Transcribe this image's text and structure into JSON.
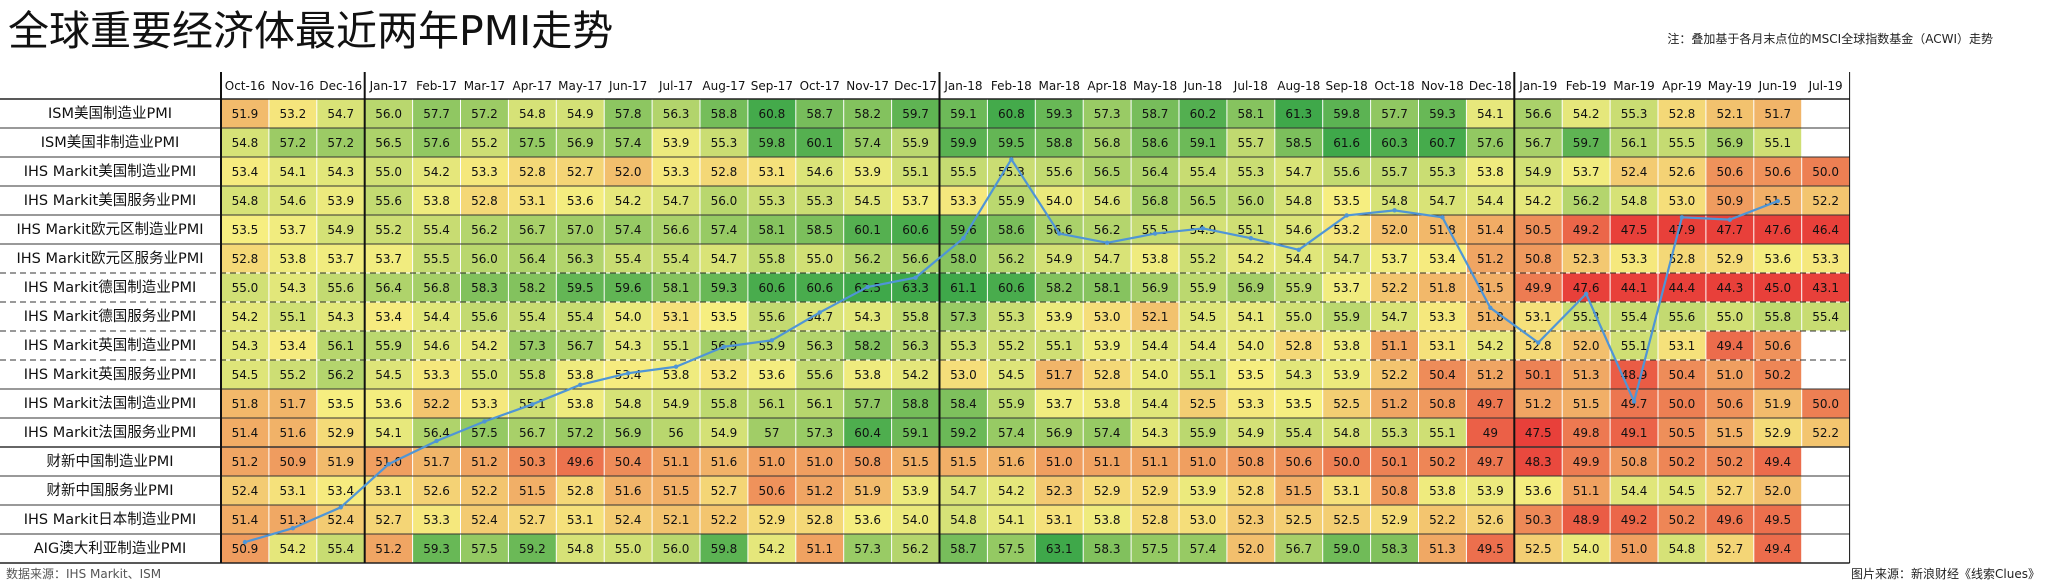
{
  "title": "全球重要经济体最近两年PMI走势",
  "note": "注：叠加基于各月末点位的MSCI全球指数基金（ACWI）走势",
  "source_left": "数据来源：IHS Markit、ISM",
  "source_right": "图片来源：新浪财经《线索Clues》",
  "chart_data": {
    "type": "heatmap",
    "title": "全球重要经济体最近两年PMI走势",
    "columns": [
      "Oct-16",
      "Nov-16",
      "Dec-16",
      "Jan-17",
      "Feb-17",
      "Mar-17",
      "Apr-17",
      "May-17",
      "Jun-17",
      "Jul-17",
      "Aug-17",
      "Sep-17",
      "Oct-17",
      "Nov-17",
      "Dec-17",
      "Jan-18",
      "Feb-18",
      "Mar-18",
      "Apr-18",
      "May-18",
      "Jun-18",
      "Jul-18",
      "Aug-18",
      "Sep-18",
      "Oct-18",
      "Nov-18",
      "Dec-18",
      "Jan-19",
      "Feb-19",
      "Mar-19",
      "Apr-19",
      "May-19",
      "Jun-19",
      "Jul-19"
    ],
    "rows": [
      {
        "label": "ISM美国制造业PMI",
        "values": [
          "51.9",
          "53.2",
          "54.7",
          "56.0",
          "57.7",
          "57.2",
          "54.8",
          "54.9",
          "57.8",
          "56.3",
          "58.8",
          "60.8",
          "58.7",
          "58.2",
          "59.7",
          "59.1",
          "60.8",
          "59.3",
          "57.3",
          "58.7",
          "60.2",
          "58.1",
          "61.3",
          "59.8",
          "57.7",
          "59.3",
          "54.1",
          "56.6",
          "54.2",
          "55.3",
          "52.8",
          "52.1",
          "51.7",
          ""
        ]
      },
      {
        "label": "ISM美国非制造业PMI",
        "values": [
          "54.8",
          "57.2",
          "57.2",
          "56.5",
          "57.6",
          "55.2",
          "57.5",
          "56.9",
          "57.4",
          "53.9",
          "55.3",
          "59.8",
          "60.1",
          "57.4",
          "55.9",
          "59.9",
          "59.5",
          "58.8",
          "56.8",
          "58.6",
          "59.1",
          "55.7",
          "58.5",
          "61.6",
          "60.3",
          "60.7",
          "57.6",
          "56.7",
          "59.7",
          "56.1",
          "55.5",
          "56.9",
          "55.1",
          ""
        ]
      },
      {
        "label": "IHS Markit美国制造业PMI",
        "values": [
          "53.4",
          "54.1",
          "54.3",
          "55.0",
          "54.2",
          "53.3",
          "52.8",
          "52.7",
          "52.0",
          "53.3",
          "52.8",
          "53.1",
          "54.6",
          "53.9",
          "55.1",
          "55.5",
          "55.3",
          "55.6",
          "56.5",
          "56.4",
          "55.4",
          "55.3",
          "54.7",
          "55.6",
          "55.7",
          "55.3",
          "53.8",
          "54.9",
          "53.7",
          "52.4",
          "52.6",
          "50.6",
          "50.6",
          "50.0"
        ]
      },
      {
        "label": "IHS Markit美国服务业PMI",
        "values": [
          "54.8",
          "54.6",
          "53.9",
          "55.6",
          "53.8",
          "52.8",
          "53.1",
          "53.6",
          "54.2",
          "54.7",
          "56.0",
          "55.3",
          "55.3",
          "54.5",
          "53.7",
          "53.3",
          "55.9",
          "54.0",
          "54.6",
          "56.8",
          "56.5",
          "56.0",
          "54.8",
          "53.5",
          "54.8",
          "54.7",
          "54.4",
          "54.2",
          "56.2",
          "54.8",
          "53.0",
          "50.9",
          "51.5",
          "52.2"
        ]
      },
      {
        "label": "IHS Markit欧元区制造业PMI",
        "values": [
          "53.5",
          "53.7",
          "54.9",
          "55.2",
          "55.4",
          "56.2",
          "56.7",
          "57.0",
          "57.4",
          "56.6",
          "57.4",
          "58.1",
          "58.5",
          "60.1",
          "60.6",
          "59.6",
          "58.6",
          "56.6",
          "56.2",
          "55.5",
          "54.9",
          "55.1",
          "54.6",
          "53.2",
          "52.0",
          "51.8",
          "51.4",
          "50.5",
          "49.2",
          "47.5",
          "47.9",
          "47.7",
          "47.6",
          "46.4"
        ]
      },
      {
        "label": "IHS Markit欧元区服务业PMI",
        "values": [
          "52.8",
          "53.8",
          "53.7",
          "53.7",
          "55.5",
          "56.0",
          "56.4",
          "56.3",
          "55.4",
          "55.4",
          "54.7",
          "55.8",
          "55.0",
          "56.2",
          "56.6",
          "58.0",
          "56.2",
          "54.9",
          "54.7",
          "53.8",
          "55.2",
          "54.2",
          "54.4",
          "54.7",
          "53.7",
          "53.4",
          "51.2",
          "50.8",
          "52.3",
          "53.3",
          "52.8",
          "52.9",
          "53.6",
          "53.3"
        ]
      },
      {
        "label": "IHS Markit德国制造业PMI",
        "values": [
          "55.0",
          "54.3",
          "55.6",
          "56.4",
          "56.8",
          "58.3",
          "58.2",
          "59.5",
          "59.6",
          "58.1",
          "59.3",
          "60.6",
          "60.6",
          "62.5",
          "63.3",
          "61.1",
          "60.6",
          "58.2",
          "58.1",
          "56.9",
          "55.9",
          "56.9",
          "55.9",
          "53.7",
          "52.2",
          "51.8",
          "51.5",
          "49.9",
          "47.6",
          "44.1",
          "44.4",
          "44.3",
          "45.0",
          "43.1"
        ]
      },
      {
        "label": "IHS Markit德国服务业PMI",
        "values": [
          "54.2",
          "55.1",
          "54.3",
          "53.4",
          "54.4",
          "55.6",
          "55.4",
          "55.4",
          "54.0",
          "53.1",
          "53.5",
          "55.6",
          "54.7",
          "54.3",
          "55.8",
          "57.3",
          "55.3",
          "53.9",
          "53.0",
          "52.1",
          "54.5",
          "54.1",
          "55.0",
          "55.9",
          "54.7",
          "53.3",
          "51.8",
          "53.1",
          "55.3",
          "55.4",
          "55.6",
          "55.0",
          "55.8",
          "55.4"
        ]
      },
      {
        "label": "IHS Markit英国制造业PMI",
        "values": [
          "54.3",
          "53.4",
          "56.1",
          "55.9",
          "54.6",
          "54.2",
          "57.3",
          "56.7",
          "54.3",
          "55.1",
          "56.9",
          "55.9",
          "56.3",
          "58.2",
          "56.3",
          "55.3",
          "55.2",
          "55.1",
          "53.9",
          "54.4",
          "54.4",
          "54.0",
          "52.8",
          "53.8",
          "51.1",
          "53.1",
          "54.2",
          "52.8",
          "52.0",
          "55.1",
          "53.1",
          "49.4",
          "50.6",
          ""
        ]
      },
      {
        "label": "IHS Markit英国服务业PMI",
        "values": [
          "54.5",
          "55.2",
          "56.2",
          "54.5",
          "53.3",
          "55.0",
          "55.8",
          "53.8",
          "53.4",
          "53.8",
          "53.2",
          "53.6",
          "55.6",
          "53.8",
          "54.2",
          "53.0",
          "54.5",
          "51.7",
          "52.8",
          "54.0",
          "55.1",
          "53.5",
          "54.3",
          "53.9",
          "52.2",
          "50.4",
          "51.2",
          "50.1",
          "51.3",
          "48.9",
          "50.4",
          "51.0",
          "50.2",
          ""
        ]
      },
      {
        "label": "IHS Markit法国制造业PMI",
        "values": [
          "51.8",
          "51.7",
          "53.5",
          "53.6",
          "52.2",
          "53.3",
          "55.1",
          "53.8",
          "54.8",
          "54.9",
          "55.8",
          "56.1",
          "56.1",
          "57.7",
          "58.8",
          "58.4",
          "55.9",
          "53.7",
          "53.8",
          "54.4",
          "52.5",
          "53.3",
          "53.5",
          "52.5",
          "51.2",
          "50.8",
          "49.7",
          "51.2",
          "51.5",
          "49.7",
          "50.0",
          "50.6",
          "51.9",
          "50.0"
        ]
      },
      {
        "label": "IHS Markit法国服务业PMI",
        "values": [
          "51.4",
          "51.6",
          "52.9",
          "54.1",
          "56.4",
          "57.5",
          "56.7",
          "57.2",
          "56.9",
          "56",
          "54.9",
          "57",
          "57.3",
          "60.4",
          "59.1",
          "59.2",
          "57.4",
          "56.9",
          "57.4",
          "54.3",
          "55.9",
          "54.9",
          "55.4",
          "54.8",
          "55.3",
          "55.1",
          "49",
          "47.5",
          "49.8",
          "49.1",
          "50.5",
          "51.5",
          "52.9",
          "52.2"
        ]
      },
      {
        "label": "财新中国制造业PMI",
        "values": [
          "51.2",
          "50.9",
          "51.9",
          "51.0",
          "51.7",
          "51.2",
          "50.3",
          "49.6",
          "50.4",
          "51.1",
          "51.6",
          "51.0",
          "51.0",
          "50.8",
          "51.5",
          "51.5",
          "51.6",
          "51.0",
          "51.1",
          "51.1",
          "51.0",
          "50.8",
          "50.6",
          "50.0",
          "50.1",
          "50.2",
          "49.7",
          "48.3",
          "49.9",
          "50.8",
          "50.2",
          "50.2",
          "49.4",
          ""
        ]
      },
      {
        "label": "财新中国服务业PMI",
        "values": [
          "52.4",
          "53.1",
          "53.4",
          "53.1",
          "52.6",
          "52.2",
          "51.5",
          "52.8",
          "51.6",
          "51.5",
          "52.7",
          "50.6",
          "51.2",
          "51.9",
          "53.9",
          "54.7",
          "54.2",
          "52.3",
          "52.9",
          "52.9",
          "53.9",
          "52.8",
          "51.5",
          "53.1",
          "50.8",
          "53.8",
          "53.9",
          "53.6",
          "51.1",
          "54.4",
          "54.5",
          "52.7",
          "52.0",
          ""
        ]
      },
      {
        "label": "IHS Markit日本制造业PMI",
        "values": [
          "51.4",
          "51.3",
          "52.4",
          "52.7",
          "53.3",
          "52.4",
          "52.7",
          "53.1",
          "52.4",
          "52.1",
          "52.2",
          "52.9",
          "52.8",
          "53.6",
          "54.0",
          "54.8",
          "54.1",
          "53.1",
          "53.8",
          "52.8",
          "53.0",
          "52.3",
          "52.5",
          "52.5",
          "52.9",
          "52.2",
          "52.6",
          "50.3",
          "48.9",
          "49.2",
          "50.2",
          "49.6",
          "49.5",
          ""
        ]
      },
      {
        "label": "AIG澳大利亚制造业PMI",
        "values": [
          "50.9",
          "54.2",
          "55.4",
          "51.2",
          "59.3",
          "57.5",
          "59.2",
          "54.8",
          "55.0",
          "56.0",
          "59.8",
          "54.2",
          "51.1",
          "57.3",
          "56.2",
          "58.7",
          "57.5",
          "63.1",
          "58.3",
          "57.5",
          "57.4",
          "52.0",
          "56.7",
          "59.0",
          "58.3",
          "51.3",
          "49.5",
          "52.5",
          "54.0",
          "51.0",
          "54.8",
          "52.7",
          "49.4",
          ""
        ]
      }
    ],
    "color_scale": {
      "low": "#e8403a",
      "mid": "#f6ee80",
      "high": "#3fa84a",
      "min": 48.0,
      "mid_value": 53.5,
      "max": 61.0
    },
    "overlay_series": {
      "type": "line",
      "color": "#4f95d6",
      "values": [
        0.955,
        0.925,
        0.88,
        0.787,
        0.737,
        0.695,
        0.658,
        0.616,
        0.591,
        0.577,
        0.534,
        0.52,
        0.46,
        0.405,
        0.385,
        0.3,
        0.13,
        0.29,
        0.31,
        0.29,
        0.279,
        0.3,
        0.325,
        0.251,
        0.24,
        0.255,
        0.45,
        0.525,
        0.42,
        0.652,
        0.255,
        0.26,
        0.22
      ]
    }
  }
}
